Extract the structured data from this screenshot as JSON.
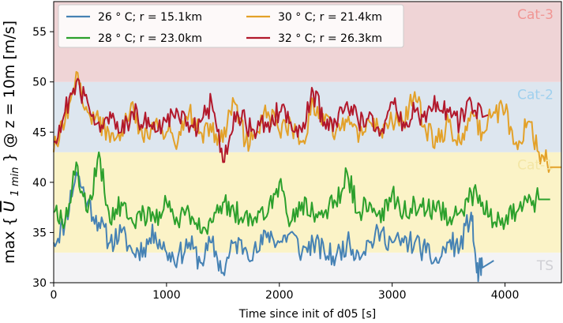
{
  "chart_data": {
    "type": "line",
    "title": "",
    "xlabel": "Time since init of d05 [s]",
    "ylabel_parts": {
      "pre": "max {",
      "sym": "U",
      "sub": "1 min",
      "post": "} @ z = 10m [m/s]"
    },
    "xlim": [
      0,
      4500
    ],
    "ylim": [
      30,
      58
    ],
    "xticks": [
      0,
      1000,
      2000,
      3000,
      4000
    ],
    "yticks": [
      30,
      35,
      40,
      45,
      50,
      55
    ],
    "grid": false,
    "legend": {
      "placement": "top-left",
      "columns": 2
    },
    "bands": [
      {
        "label": "TS",
        "range": [
          30,
          33
        ],
        "color": "#f3f3f5",
        "text_color": "#cfcfd4"
      },
      {
        "label": "Cat-1",
        "range": [
          33,
          43
        ],
        "color": "#fbf3c7",
        "text_color": "#f3e6a5"
      },
      {
        "label": "Cat-2",
        "range": [
          43,
          50
        ],
        "color": "#dde6ef",
        "text_color": "#9fd0ee"
      },
      {
        "label": "Cat-3",
        "range": [
          50,
          58
        ],
        "color": "#efd4d6",
        "text_color": "#f09694"
      }
    ],
    "series": [
      {
        "name": "26$^\\circ$C; r = 15.1km",
        "legend_label": "26 ° C; r = 15.1km",
        "color": "#4682b4",
        "x": [
          0,
          100,
          200,
          300,
          400,
          500,
          600,
          700,
          800,
          900,
          1000,
          1100,
          1200,
          1300,
          1400,
          1500,
          1600,
          1700,
          1800,
          1900,
          2000,
          2100,
          2200,
          2300,
          2400,
          2500,
          2600,
          2700,
          2800,
          2900,
          3000,
          3100,
          3200,
          3300,
          3400,
          3500,
          3600,
          3700,
          3750,
          3800,
          3900
        ],
        "y": [
          34,
          36,
          41,
          38,
          36,
          34,
          35,
          33,
          33.5,
          35,
          33,
          32.5,
          34,
          32,
          34,
          31,
          34,
          33.5,
          33,
          35,
          34,
          35,
          33,
          34,
          33,
          32.5,
          34,
          33,
          34,
          35,
          34,
          34,
          34,
          33,
          32,
          34,
          33.5,
          37,
          31,
          31.5,
          32.2
        ]
      },
      {
        "name": "28$^\\circ$C; r = 23.0km",
        "legend_label": "28 ° C; r = 23.0km",
        "color": "#2ca02c",
        "x": [
          0,
          100,
          200,
          300,
          400,
          500,
          600,
          700,
          800,
          900,
          1000,
          1100,
          1200,
          1300,
          1400,
          1500,
          1600,
          1700,
          1800,
          1900,
          2000,
          2100,
          2200,
          2300,
          2400,
          2500,
          2600,
          2700,
          2800,
          2900,
          3000,
          3100,
          3200,
          3300,
          3400,
          3500,
          3600,
          3700,
          3800,
          3900,
          4000,
          4100,
          4200,
          4300,
          4400
        ],
        "y": [
          37,
          36,
          42,
          37,
          43,
          36,
          38,
          36,
          37,
          36,
          38,
          36,
          37,
          35,
          36,
          38,
          37,
          37,
          36,
          37,
          40,
          36,
          38,
          37,
          37,
          38,
          41,
          37,
          38,
          36,
          39,
          37,
          38,
          37,
          38,
          36,
          37,
          39,
          38,
          36,
          36,
          37,
          38,
          38.3,
          38.3
        ]
      },
      {
        "name": "30$^\\circ$C; r = 21.4km",
        "legend_label": "30 ° C; r = 21.4km",
        "color": "#e3a129",
        "x": [
          0,
          100,
          200,
          300,
          400,
          500,
          600,
          700,
          800,
          900,
          1000,
          1100,
          1200,
          1300,
          1400,
          1500,
          1600,
          1700,
          1800,
          1900,
          2000,
          2100,
          2200,
          2300,
          2400,
          2500,
          2600,
          2700,
          2800,
          2900,
          3000,
          3100,
          3200,
          3300,
          3400,
          3500,
          3600,
          3700,
          3800,
          3900,
          4000,
          4100,
          4200,
          4300,
          4400,
          4500
        ],
        "y": [
          43,
          46,
          51,
          47,
          46,
          44,
          45,
          48,
          44,
          46,
          45,
          44,
          47,
          45,
          45,
          44,
          48,
          44,
          45,
          47,
          45,
          46,
          44,
          48,
          46,
          45,
          46,
          44,
          46,
          45,
          46,
          46,
          49,
          45,
          44,
          46,
          44,
          47,
          45,
          47,
          47,
          44,
          46,
          43,
          41.5,
          41.5
        ]
      },
      {
        "name": "32$^\\circ$C; r = 26.3km",
        "legend_label": "32 ° C; r = 26.3km",
        "color": "#b2182b",
        "x": [
          0,
          100,
          200,
          300,
          400,
          500,
          600,
          700,
          800,
          900,
          1000,
          1100,
          1200,
          1300,
          1400,
          1500,
          1600,
          1700,
          1800,
          1900,
          2000,
          2100,
          2200,
          2300,
          2400,
          2500,
          2600,
          2700,
          2800,
          2900,
          3000,
          3100,
          3200,
          3300,
          3400,
          3500,
          3600,
          3700,
          3800,
          3850
        ],
        "y": [
          44,
          47,
          50,
          48,
          46,
          47,
          45,
          47,
          46,
          45,
          46,
          47,
          45,
          46,
          48,
          42,
          47,
          46,
          45,
          46,
          47,
          46,
          45,
          49,
          46,
          46,
          48,
          46,
          47,
          45,
          48,
          46,
          47,
          46,
          48,
          47,
          46,
          48,
          46.5,
          46.7
        ]
      }
    ]
  }
}
